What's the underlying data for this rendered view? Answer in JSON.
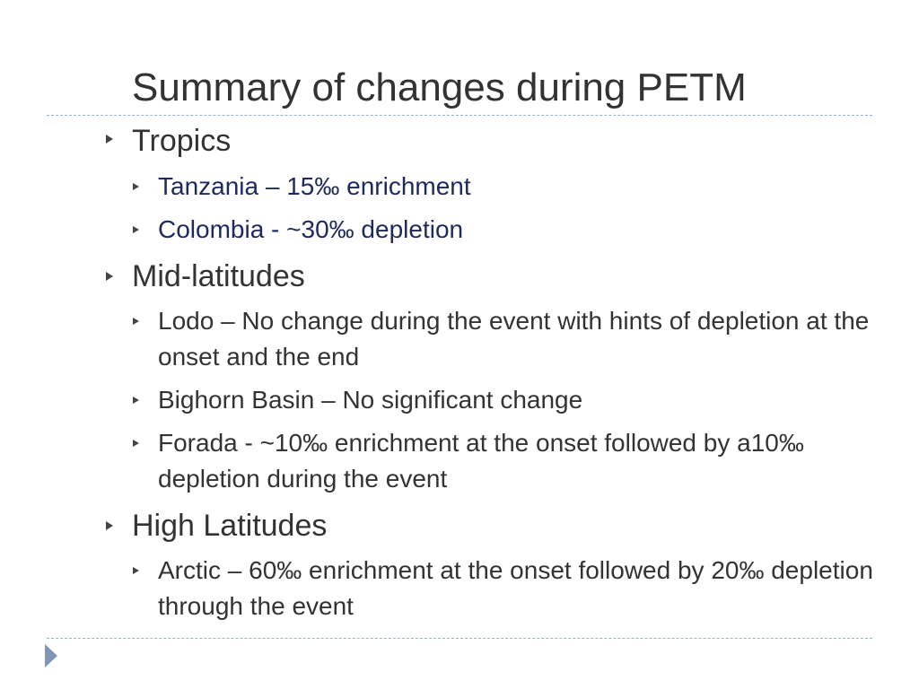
{
  "slide": {
    "title": "Summary of changes during PETM",
    "sections": [
      {
        "heading": "Tropics",
        "items": [
          "Tanzania – 15‰  enrichment",
          "Colombia - ~30‰ depletion"
        ]
      },
      {
        "heading": "Mid-latitudes",
        "items": [
          "Lodo – No change during the event with hints of depletion at the onset and the end",
          "Bighorn Basin – No significant change",
          "Forada - ~10‰ enrichment at the onset followed by a10‰ depletion during the event"
        ]
      },
      {
        "heading": "High Latitudes",
        "items": [
          "Arctic – 60‰ enrichment at the onset followed by 20‰ depletion through the event"
        ]
      }
    ]
  },
  "icons": {
    "bullet": "triangle-bullet-icon",
    "nav": "next-slide-arrow-icon"
  }
}
